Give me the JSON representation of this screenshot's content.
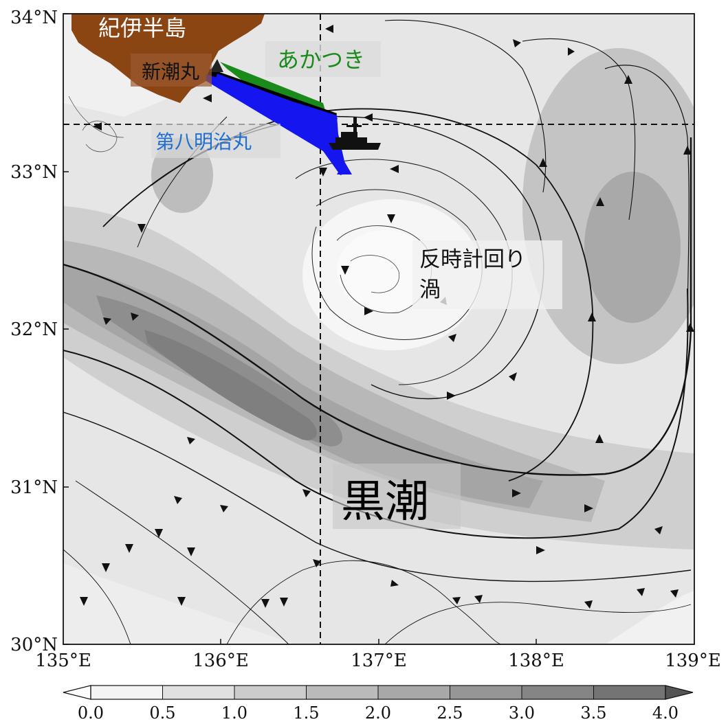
{
  "map": {
    "lon_range": [
      135,
      139
    ],
    "lat_range": [
      30,
      34
    ],
    "lon_ticks": [
      "135°E",
      "136°E",
      "137°E",
      "138°E",
      "139°E"
    ],
    "lat_ticks": [
      "30°N",
      "31°N",
      "32°N",
      "33°N",
      "34°N"
    ],
    "reference_lon": 136.65,
    "reference_lat": 33.3
  },
  "labels": {
    "peninsula": "紀伊半島",
    "ship_shincho": "新潮丸",
    "ship_akatsuki": "あかつき",
    "ship_daihachi": "第八明治丸",
    "eddy_line1": "反時計回り",
    "eddy_line2": "渦",
    "current": "黒潮"
  },
  "colors": {
    "land": "#8b4513",
    "akatsuki": "#1a8a1a",
    "daihachi": "#1515f0",
    "shincho": "#000000",
    "label_daihachi": "#1e6fd0"
  },
  "colorbar": {
    "ticks": [
      "0.0",
      "0.5",
      "1.0",
      "1.5",
      "2.0",
      "2.5",
      "3.0",
      "3.5",
      "4.0"
    ],
    "levels": [
      0.0,
      0.5,
      1.0,
      1.5,
      2.0,
      2.5,
      3.0,
      3.5,
      4.0
    ],
    "colors": [
      "#f4f4f4",
      "#e0e0e0",
      "#cccccc",
      "#bababa",
      "#a8a8a8",
      "#969696",
      "#858585",
      "#747474"
    ]
  }
}
